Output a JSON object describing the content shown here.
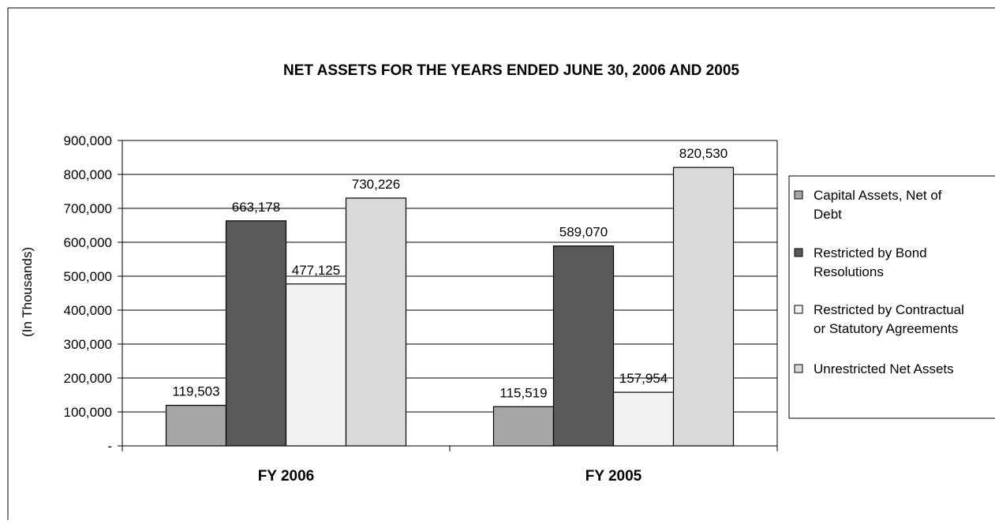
{
  "chart_data": {
    "type": "bar",
    "title": "NET ASSETS FOR THE YEARS ENDED JUNE 30, 2006 AND 2005",
    "ylabel": "(In Thousands)",
    "xlabel": "",
    "categories": [
      "FY 2006",
      "FY 2005"
    ],
    "ylim": [
      0,
      900000
    ],
    "yticks": [
      {
        "value": 0,
        "label": "-"
      },
      {
        "value": 100000,
        "label": "100,000"
      },
      {
        "value": 200000,
        "label": "200,000"
      },
      {
        "value": 300000,
        "label": "300,000"
      },
      {
        "value": 400000,
        "label": "400,000"
      },
      {
        "value": 500000,
        "label": "500,000"
      },
      {
        "value": 600000,
        "label": "600,000"
      },
      {
        "value": 700000,
        "label": "700,000"
      },
      {
        "value": 800000,
        "label": "800,000"
      },
      {
        "value": 900000,
        "label": "900,000"
      }
    ],
    "grid": true,
    "legend_position": "right",
    "series": [
      {
        "name": "Capital Assets, Net of Debt",
        "legend_lines": [
          "Capital Assets, Net of",
          "Debt"
        ],
        "color": "#a6a6a6",
        "values": [
          119503,
          115519
        ],
        "labels": [
          "119,503",
          "115,519"
        ]
      },
      {
        "name": "Restricted by Bond Resolutions",
        "legend_lines": [
          "Restricted by Bond",
          "Resolutions"
        ],
        "color": "#595959",
        "values": [
          663178,
          589070
        ],
        "labels": [
          "663,178",
          "589,070"
        ]
      },
      {
        "name": "Restricted by Contractual or Statutory Agreements",
        "legend_lines": [
          "Restricted by Contractual",
          "or Statutory Agreements"
        ],
        "color": "#f2f2f2",
        "values": [
          477125,
          157954
        ],
        "labels": [
          "477,125",
          "157,954"
        ]
      },
      {
        "name": "Unrestricted Net Assets",
        "legend_lines": [
          "Unrestricted Net Assets"
        ],
        "color": "#d9d9d9",
        "values": [
          730226,
          820530
        ],
        "labels": [
          "730,226",
          "820,530"
        ]
      }
    ]
  }
}
